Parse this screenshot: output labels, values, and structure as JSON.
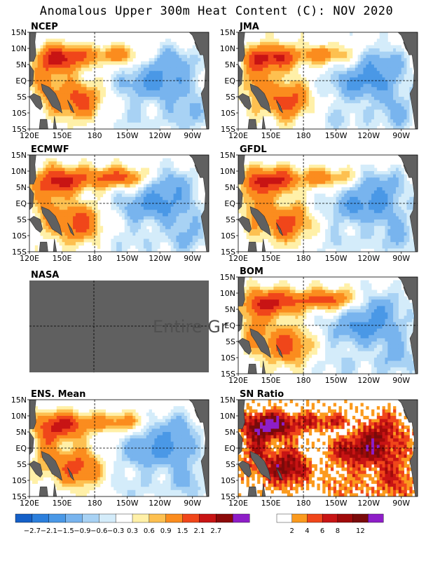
{
  "figure": {
    "title": "Anomalous Upper 300m Heat Content (C): NOV 2020"
  },
  "colors": {
    "land": "#606060",
    "missing": "#606060",
    "anomaly_levels": [
      "#1560c8",
      "#2c7fdc",
      "#4a98e6",
      "#78b4ee",
      "#a8d2f4",
      "#d4ecfa",
      "#ffffff",
      "#fff0a8",
      "#fdc050",
      "#fb8c1e",
      "#f0461a",
      "#c81414",
      "#8c0a0a",
      "#8e1ec8"
    ],
    "snr_levels": [
      "#ffffff",
      "#fb9a1e",
      "#f0461a",
      "#c81414",
      "#a00a0a",
      "#7a0a0a",
      "#8e1ec8"
    ]
  },
  "colorbars": {
    "anomaly": {
      "ticks": [
        "−2.7",
        "−2.1",
        "−1.5",
        "−0.9",
        "−0.6",
        "−0.3",
        "0.3",
        "0.6",
        "0.9",
        "1.5",
        "2.1",
        "2.7"
      ]
    },
    "snr": {
      "ticks": [
        "2",
        "4",
        "6",
        "8",
        "12"
      ]
    }
  },
  "chart_data": [
    {
      "type": "heatmap",
      "name": "NCEP",
      "xlabel": "",
      "ylabel": "",
      "x_ticks": [
        "120E",
        "150E",
        "180",
        "150W",
        "120W",
        "90W"
      ],
      "y_ticks": [
        "15N",
        "10N",
        "5N",
        "EQ",
        "5S",
        "10S",
        "15S"
      ],
      "xlim": [
        "120E",
        "75W"
      ],
      "ylim": [
        "15S",
        "15N"
      ],
      "grid": "dashed at 180 and EQ"
    },
    {
      "type": "heatmap",
      "name": "JMA",
      "xlabel": "",
      "ylabel": "",
      "x_ticks": [
        "120E",
        "150E",
        "180",
        "150W",
        "120W",
        "90W"
      ],
      "y_ticks": [
        "15N",
        "10N",
        "5N",
        "EQ",
        "5S",
        "10S",
        "15S"
      ],
      "xlim": [
        "120E",
        "75W"
      ],
      "ylim": [
        "15S",
        "15N"
      ],
      "grid": "dashed at 180 and EQ"
    },
    {
      "type": "heatmap",
      "name": "ECMWF",
      "xlabel": "",
      "ylabel": "",
      "x_ticks": [
        "120E",
        "150E",
        "180",
        "150W",
        "120W",
        "90W"
      ],
      "y_ticks": [
        "15N",
        "10N",
        "5N",
        "EQ",
        "5S",
        "10S",
        "15S"
      ],
      "xlim": [
        "120E",
        "75W"
      ],
      "ylim": [
        "15S",
        "15N"
      ],
      "grid": "dashed at 180 and EQ"
    },
    {
      "type": "heatmap",
      "name": "GFDL",
      "xlabel": "",
      "ylabel": "",
      "x_ticks": [
        "120E",
        "150E",
        "180",
        "150W",
        "120W",
        "90W"
      ],
      "y_ticks": [
        "15N",
        "10N",
        "5N",
        "EQ",
        "5S",
        "10S",
        "15S"
      ],
      "xlim": [
        "120E",
        "75W"
      ],
      "ylim": [
        "15S",
        "15N"
      ],
      "grid": "dashed at 180 and EQ"
    },
    {
      "type": "heatmap",
      "name": "NASA",
      "note_text": "Entire Gr",
      "x_ticks": [],
      "y_ticks": [],
      "grid": "dashed at 180 and EQ"
    },
    {
      "type": "heatmap",
      "name": "BOM",
      "xlabel": "",
      "ylabel": "",
      "x_ticks": [
        "120E",
        "150E",
        "180",
        "150W",
        "120W",
        "90W"
      ],
      "y_ticks": [
        "15N",
        "10N",
        "5N",
        "EQ",
        "5S",
        "10S",
        "15S"
      ],
      "xlim": [
        "120E",
        "75W"
      ],
      "ylim": [
        "15S",
        "15N"
      ],
      "grid": "dashed at 180 and EQ"
    },
    {
      "type": "heatmap",
      "name": "ENS. Mean",
      "xlabel": "",
      "ylabel": "",
      "x_ticks": [
        "120E",
        "150E",
        "180",
        "150W",
        "120W",
        "90W"
      ],
      "y_ticks": [
        "15N",
        "10N",
        "5N",
        "EQ",
        "5S",
        "10S",
        "15S"
      ],
      "xlim": [
        "120E",
        "75W"
      ],
      "ylim": [
        "15S",
        "15N"
      ],
      "grid": "dashed at 180 and EQ"
    },
    {
      "type": "heatmap",
      "name": "SN Ratio",
      "xlabel": "",
      "ylabel": "",
      "x_ticks": [
        "120E",
        "150E",
        "180",
        "150W",
        "120W",
        "90W"
      ],
      "y_ticks": [
        "15N",
        "10N",
        "5N",
        "EQ",
        "5S",
        "10S",
        "15S"
      ],
      "xlim": [
        "120E",
        "75W"
      ],
      "ylim": [
        "15S",
        "15N"
      ],
      "grid": "dashed at 180 and EQ"
    }
  ]
}
